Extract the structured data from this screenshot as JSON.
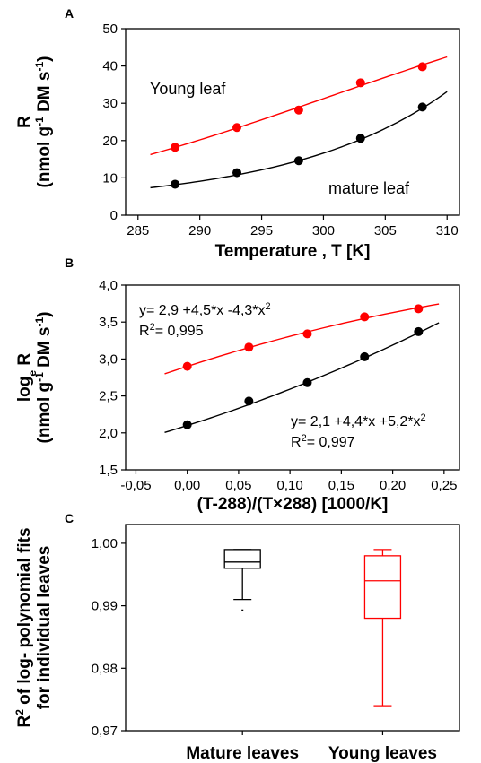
{
  "chart_data": [
    {
      "panel": "A",
      "type": "scatter",
      "xlabel": "Temperature , T [K]",
      "ylabel_line1": "R",
      "ylabel_line2": "(nmol g-1 DM s-1)",
      "xlim": [
        284,
        311
      ],
      "ylim": [
        0,
        50
      ],
      "xticks": [
        285,
        290,
        295,
        300,
        305,
        310
      ],
      "yticks": [
        0,
        10,
        20,
        30,
        40,
        50
      ],
      "colors": {
        "young": "#ff0000",
        "mature": "#000000"
      },
      "series": [
        {
          "name": "Young leaf",
          "color": "#ff0000",
          "x": [
            288,
            293,
            298,
            303,
            308
          ],
          "y": [
            18.2,
            23.5,
            28.2,
            35.5,
            39.8
          ],
          "fit_x": [
            286,
            310
          ],
          "fit": "young"
        },
        {
          "name": "mature leaf",
          "color": "#000000",
          "x": [
            288,
            293,
            298,
            303,
            308
          ],
          "y": [
            8.3,
            11.4,
            14.6,
            20.6,
            29.0
          ],
          "fit_x": [
            286,
            310
          ],
          "fit": "mature"
        }
      ]
    },
    {
      "panel": "B",
      "type": "scatter",
      "xlabel": "(T-288)/(T×288)   [1000/K]",
      "ylabel_line1": "loge R",
      "ylabel_line2": "(nmol g-1 DM s-1)",
      "xlim": [
        -0.06,
        0.265
      ],
      "ylim": [
        1.5,
        4.0
      ],
      "xticks": [
        -0.05,
        0.0,
        0.05,
        0.1,
        0.15,
        0.2,
        0.25
      ],
      "xtick_labels": [
        "-0,05",
        "0,00",
        "0,05",
        "0,10",
        "0,15",
        "0,20",
        "0,25"
      ],
      "yticks": [
        1.5,
        2.0,
        2.5,
        3.0,
        3.5,
        4.0
      ],
      "ytick_labels": [
        "1,5",
        "2,0",
        "2,5",
        "3,0",
        "3,5",
        "4,0"
      ],
      "series": [
        {
          "name": "Young leaf",
          "color": "#ff0000",
          "x": [
            0.0,
            0.06,
            0.1169,
            0.1726,
            0.2251
          ],
          "y": [
            2.9,
            3.16,
            3.34,
            3.57,
            3.68
          ],
          "fit_x": [
            -0.022,
            0.245
          ],
          "coef": [
            2.9,
            4.5,
            -4.3
          ]
        },
        {
          "name": "mature leaf",
          "color": "#000000",
          "x": [
            0.0,
            0.06,
            0.1169,
            0.1726,
            0.2251
          ],
          "y": [
            2.11,
            2.43,
            2.68,
            3.03,
            3.37
          ],
          "fit_x": [
            -0.022,
            0.245
          ],
          "coef": [
            2.1,
            4.4,
            5.2
          ]
        }
      ],
      "annotations": {
        "young_eq": "y= 2,9 +4,5*x -4,3*x2",
        "young_r2": "R2= 0,995",
        "mature_eq": "y= 2,1 +4,4*x +5,2*x2",
        "mature_r2": "R2= 0,997"
      }
    },
    {
      "panel": "C",
      "type": "box",
      "ylabel_line1": "R2 of log- polynomial fits",
      "ylabel_line2": "for individual leaves",
      "ylim": [
        0.97,
        1.003
      ],
      "yticks": [
        0.97,
        0.98,
        0.99,
        1.0
      ],
      "ytick_labels": [
        "0,97",
        "0,98",
        "0,99",
        "1,00"
      ],
      "categories": [
        "Mature leaves",
        "Young leaves"
      ],
      "boxes": [
        {
          "category": "Mature leaves",
          "color": "#000000",
          "min": 0.991,
          "q1": 0.996,
          "median": 0.997,
          "q3": 0.999,
          "max": 0.999,
          "outlier": 0.9893
        },
        {
          "category": "Young leaves",
          "color": "#ff0000",
          "min": 0.974,
          "q1": 0.988,
          "median": 0.994,
          "q3": 0.998,
          "max": 0.999
        }
      ]
    }
  ]
}
